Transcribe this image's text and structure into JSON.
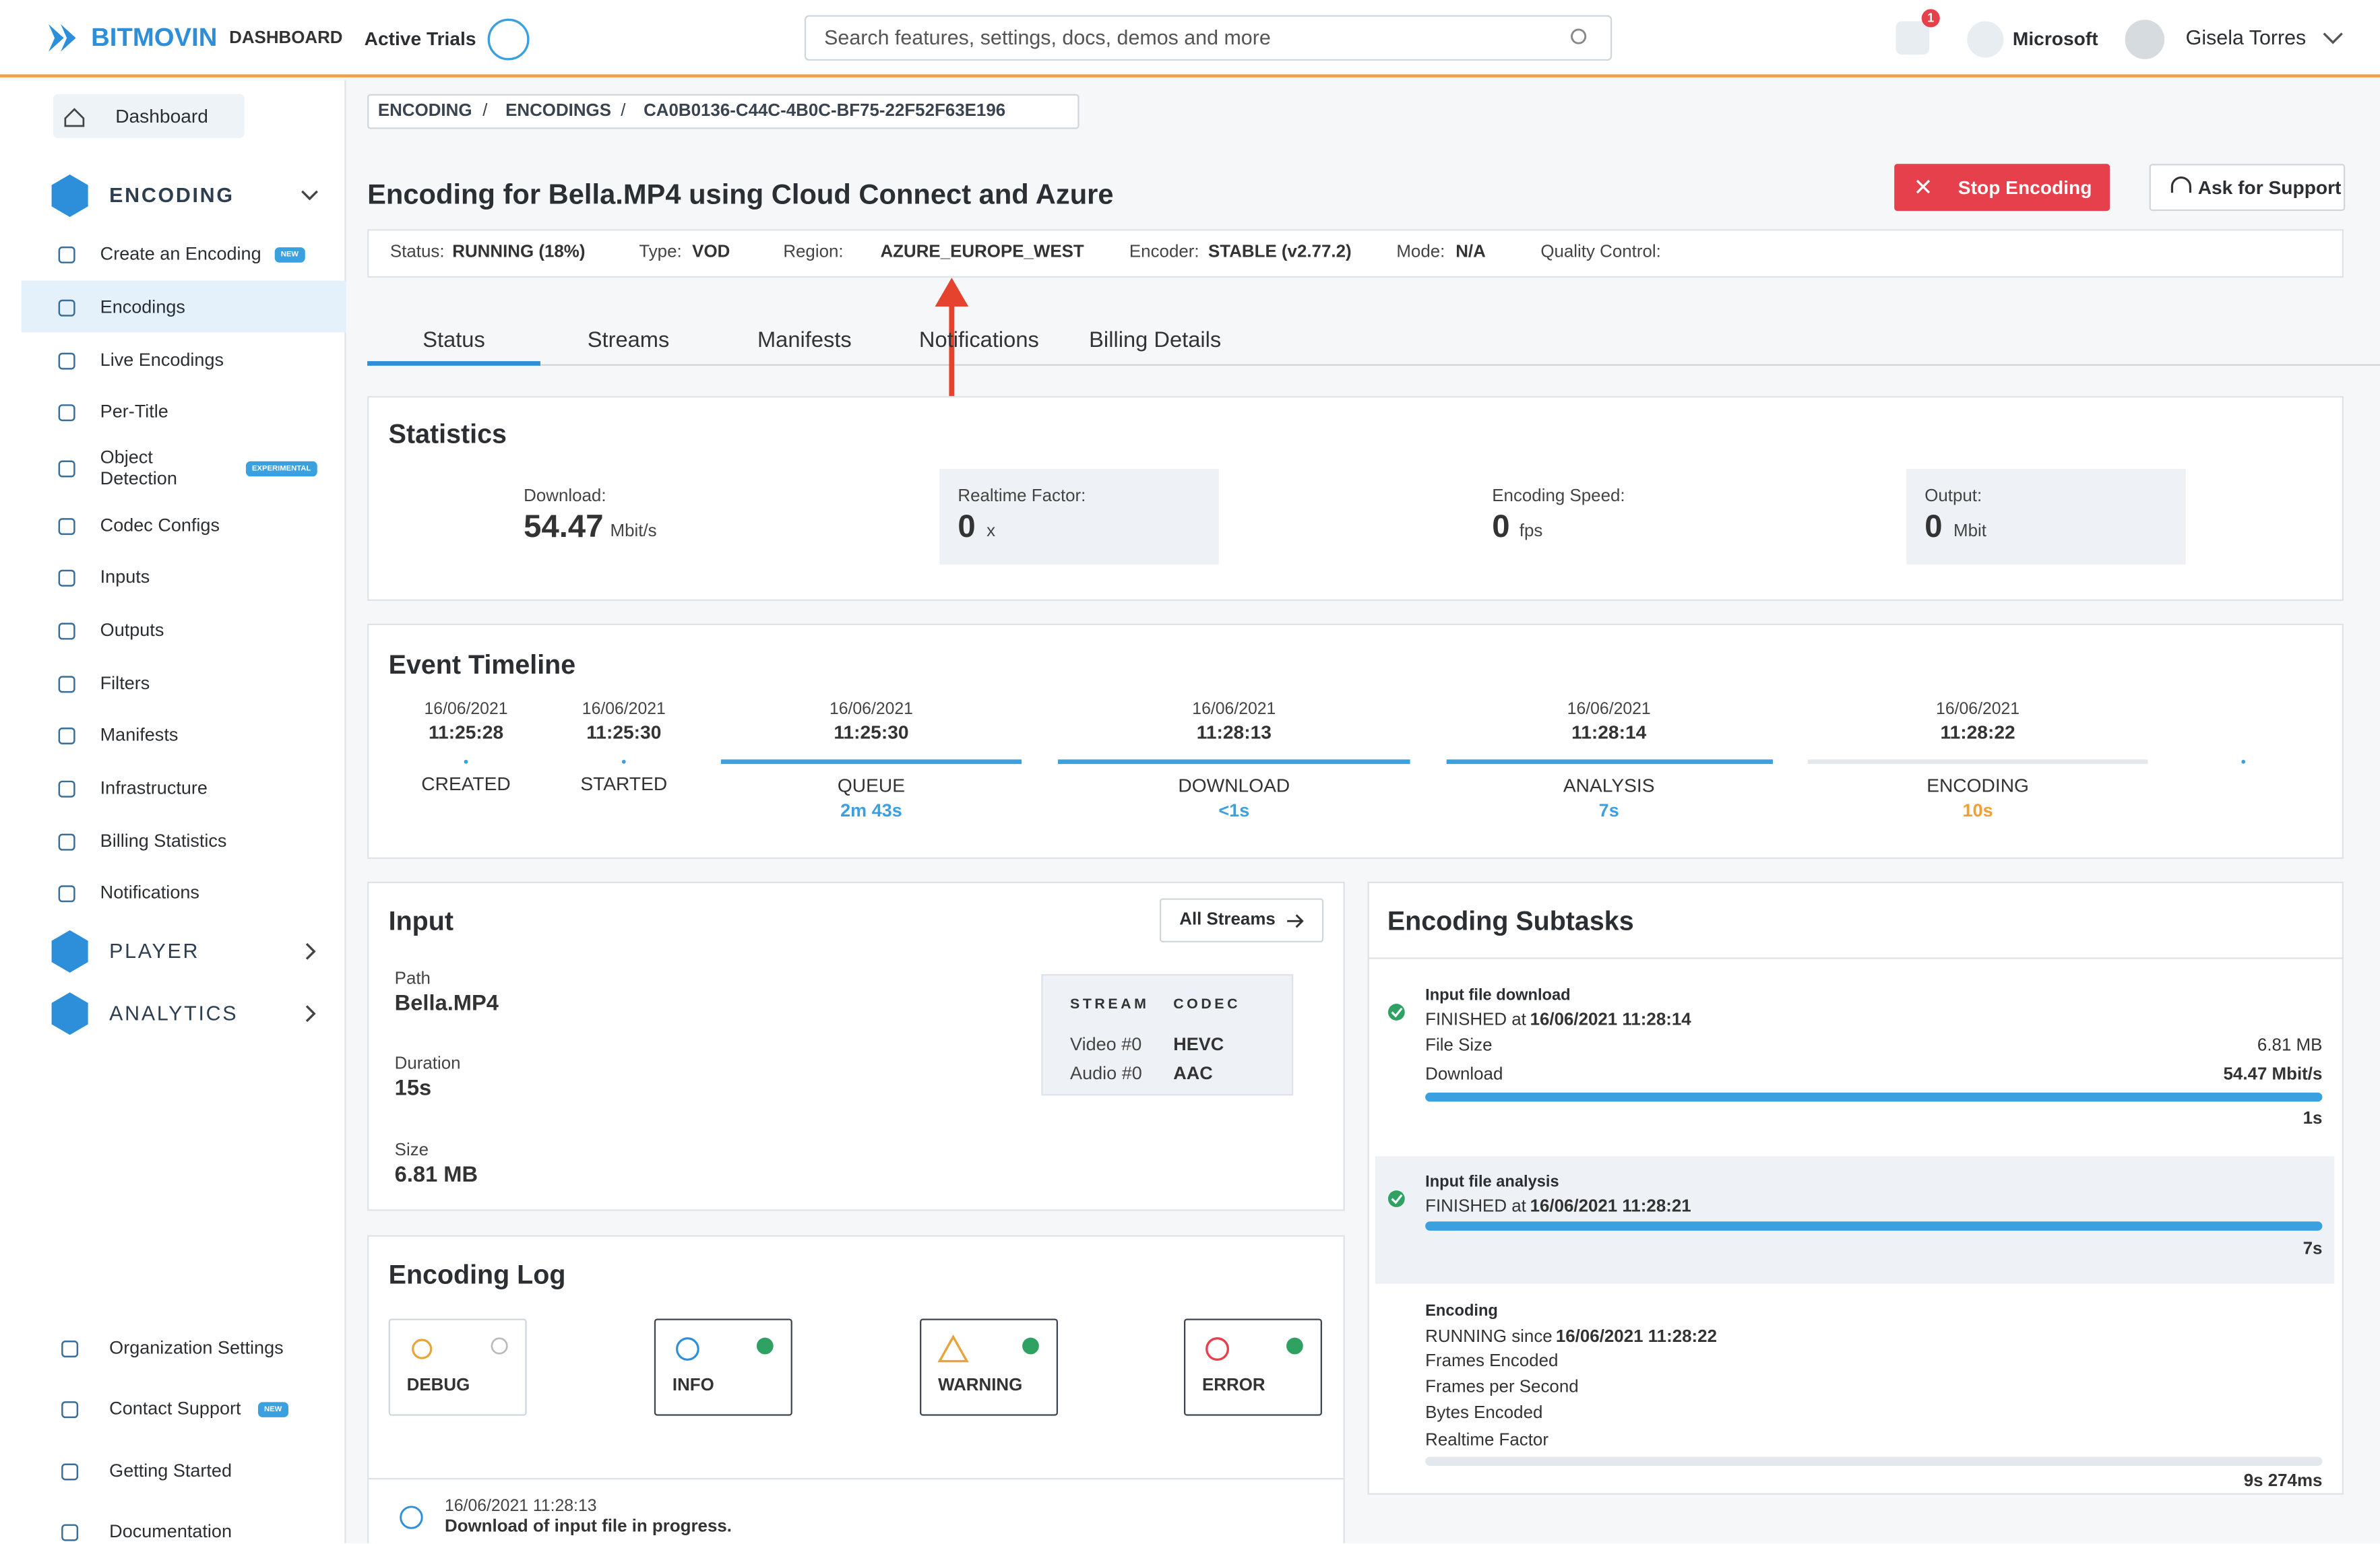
{
  "header": {
    "logo": "BITMOVIN",
    "product": "DASHBOARD",
    "trials": "Active Trials",
    "search_placeholder": "Search features, settings, docs, demos and more",
    "notification_count": "1",
    "organization": "Microsoft",
    "user": "Gisela Torres"
  },
  "sidebar": {
    "dashboard": "Dashboard",
    "encoding": {
      "title": "ENCODING",
      "items": [
        {
          "label": "Create an Encoding",
          "badge": "NEW"
        },
        {
          "label": "Encodings"
        },
        {
          "label": "Live Encodings"
        },
        {
          "label": "Per-Title"
        },
        {
          "label": "Object Detection",
          "badge": "EXPERIMENTAL"
        },
        {
          "label": "Codec Configs"
        },
        {
          "label": "Inputs"
        },
        {
          "label": "Outputs"
        },
        {
          "label": "Filters"
        },
        {
          "label": "Manifests"
        },
        {
          "label": "Infrastructure"
        },
        {
          "label": "Billing Statistics"
        },
        {
          "label": "Notifications"
        }
      ]
    },
    "player": "PLAYER",
    "analytics": "ANALYTICS",
    "bottom": [
      {
        "label": "Organization Settings"
      },
      {
        "label": "Contact Support",
        "badge": "NEW"
      },
      {
        "label": "Getting Started"
      },
      {
        "label": "Documentation"
      }
    ]
  },
  "breadcrumb": {
    "items": [
      "ENCODING",
      "ENCODINGS",
      "CA0B0136-C44C-4B0C-BF75-22F52F63E196"
    ],
    "separator": "/"
  },
  "page": {
    "title": "Encoding for Bella.MP4 using Cloud Connect and Azure",
    "stop_button": "Stop Encoding",
    "support_button": "Ask for Support"
  },
  "status_bar": [
    {
      "label": "Status:",
      "value": "RUNNING (18%)"
    },
    {
      "label": "Type:",
      "value": "VOD"
    },
    {
      "label": "Region:",
      "value": "AZURE_EUROPE_WEST"
    },
    {
      "label": "Encoder:",
      "value": "STABLE (v2.77.2)"
    },
    {
      "label": "Mode:",
      "value": "N/A"
    },
    {
      "label": "Quality Control:"
    }
  ],
  "tabs": [
    "Status",
    "Streams",
    "Manifests",
    "Notifications",
    "Billing Details"
  ],
  "statistics": {
    "title": "Statistics",
    "items": [
      {
        "label": "Download:",
        "value": "54.47",
        "unit": "Mbit/s"
      },
      {
        "label": "Realtime Factor:",
        "value": "0",
        "unit": "x"
      },
      {
        "label": "Encoding Speed:",
        "value": "0",
        "unit": "fps"
      },
      {
        "label": "Output:",
        "value": "0",
        "unit": "Mbit"
      }
    ]
  },
  "timeline": {
    "title": "Event Timeline",
    "events": [
      {
        "date": "16/06/2021",
        "time": "11:25:28",
        "label": "CREATED"
      },
      {
        "date": "16/06/2021",
        "time": "11:25:30",
        "label": "STARTED"
      },
      {
        "date": "16/06/2021",
        "time": "11:25:30",
        "label": "QUEUE",
        "duration": "2m 43s"
      },
      {
        "date": "16/06/2021",
        "time": "11:28:13",
        "label": "DOWNLOAD",
        "duration": "<1s"
      },
      {
        "date": "16/06/2021",
        "time": "11:28:14",
        "label": "ANALYSIS",
        "duration": "7s"
      },
      {
        "date": "16/06/2021",
        "time": "11:28:22",
        "label": "ENCODING",
        "duration": "10s"
      }
    ]
  },
  "input": {
    "title": "Input",
    "all_streams": "All Streams",
    "fields": [
      {
        "label": "Path",
        "value": "Bella.MP4"
      },
      {
        "label": "Duration",
        "value": "15s"
      },
      {
        "label": "Size",
        "value": "6.81 MB"
      }
    ],
    "streams": {
      "headers": [
        "STREAM",
        "CODEC"
      ],
      "rows": [
        [
          "Video #0",
          "HEVC"
        ],
        [
          "Audio #0",
          "AAC"
        ]
      ]
    }
  },
  "subtasks": {
    "title": "Encoding Subtasks",
    "items": [
      {
        "name": "Input file download",
        "status": "FINISHED at",
        "time": "16/06/2021 11:28:14",
        "file_size_label": "File Size",
        "file_size": "6.81 MB",
        "download_label": "Download",
        "download": "54.47 Mbit/s",
        "duration": "1s"
      },
      {
        "name": "Input file analysis",
        "status": "FINISHED at",
        "time": "16/06/2021 11:28:21",
        "duration": "7s"
      },
      {
        "name": "Encoding",
        "status": "RUNNING since",
        "time": "16/06/2021 11:28:22",
        "metrics": [
          "Frames Encoded",
          "Frames per Second",
          "Bytes Encoded",
          "Realtime Factor"
        ],
        "duration": "9s 274ms"
      }
    ]
  },
  "log": {
    "title": "Encoding Log",
    "levels": [
      "DEBUG",
      "INFO",
      "WARNING",
      "ERROR"
    ],
    "entries": [
      {
        "time": "16/06/2021 11:28:13",
        "message": "Download of input file in progress."
      }
    ]
  }
}
